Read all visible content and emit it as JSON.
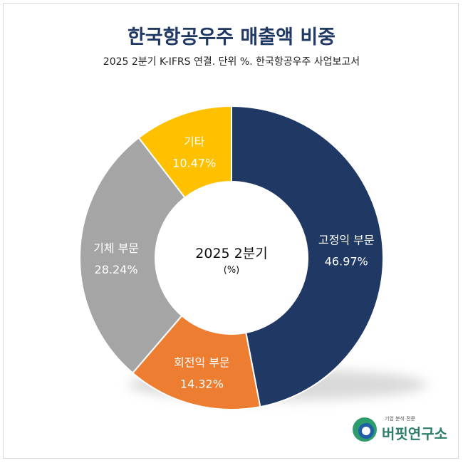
{
  "title": "한국항공우주 매출액 비중",
  "subtitle": "2025 2분기 K-IFRS 연결. 단위 %. 한국항공우주 사업보고서",
  "center": {
    "title": "2025 2분기",
    "unit": "(%)"
  },
  "logo": {
    "tagline": "기업 분석 전문",
    "name": "버핏연구소"
  },
  "chart_data": {
    "type": "pie",
    "donut": true,
    "start_angle": "12 o'clock, clockwise",
    "slices": [
      {
        "label": "고정익 부문",
        "value": 46.97,
        "display": "46.97%",
        "color": "#1f3864",
        "text_color": "#ffffff"
      },
      {
        "label": "회전익 부문",
        "value": 14.32,
        "display": "14.32%",
        "color": "#ed7d31",
        "text_color": "#ffffff"
      },
      {
        "label": "기체 부문",
        "value": 28.24,
        "display": "28.24%",
        "color": "#a5a5a5",
        "text_color": "#ffffff"
      },
      {
        "label": "기타",
        "value": 10.47,
        "display": "10.47%",
        "color": "#ffc000",
        "text_color": "#ffffff"
      }
    ]
  }
}
